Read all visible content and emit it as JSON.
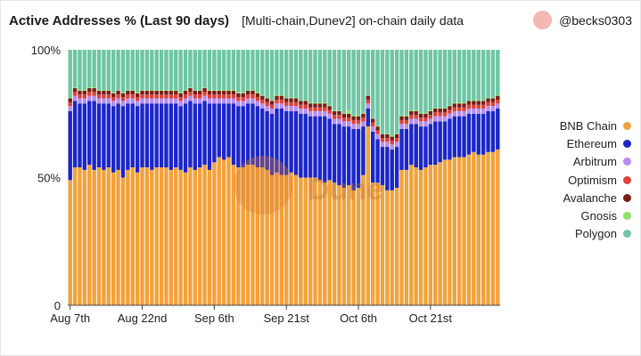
{
  "header": {
    "title": "Active Addresses % (Last 90 days)",
    "subtitle": "[Multi-chain,Dunev2] on-chain daily data",
    "author": "@becks0303"
  },
  "watermark": {
    "text": "Dune"
  },
  "chart_data": {
    "type": "bar",
    "stacked": true,
    "title": "Active Addresses % (Last 90 days)",
    "subtitle": "[Multi-chain,Dunev2] on-chain daily data",
    "y_ticks": [
      "0",
      "50%",
      "100%"
    ],
    "ylim": [
      0,
      100
    ],
    "x_tick_labels": [
      "Aug 7th",
      "Aug 22nd",
      "Sep 6th",
      "Sep 21st",
      "Oct 6th",
      "Oct 21st"
    ],
    "x_tick_index": [
      0,
      15,
      30,
      45,
      60,
      75
    ],
    "grid": false,
    "legend_position": "right",
    "categories": [
      "Aug 7",
      "Aug 8",
      "Aug 9",
      "Aug 10",
      "Aug 11",
      "Aug 12",
      "Aug 13",
      "Aug 14",
      "Aug 15",
      "Aug 16",
      "Aug 17",
      "Aug 18",
      "Aug 19",
      "Aug 20",
      "Aug 21",
      "Aug 22",
      "Aug 23",
      "Aug 24",
      "Aug 25",
      "Aug 26",
      "Aug 27",
      "Aug 28",
      "Aug 29",
      "Aug 30",
      "Aug 31",
      "Sep 1",
      "Sep 2",
      "Sep 3",
      "Sep 4",
      "Sep 5",
      "Sep 6",
      "Sep 7",
      "Sep 8",
      "Sep 9",
      "Sep 10",
      "Sep 11",
      "Sep 12",
      "Sep 13",
      "Sep 14",
      "Sep 15",
      "Sep 16",
      "Sep 17",
      "Sep 18",
      "Sep 19",
      "Sep 20",
      "Sep 21",
      "Sep 22",
      "Sep 23",
      "Sep 24",
      "Sep 25",
      "Sep 26",
      "Sep 27",
      "Sep 28",
      "Sep 29",
      "Sep 30",
      "Oct 1",
      "Oct 2",
      "Oct 3",
      "Oct 4",
      "Oct 5",
      "Oct 6",
      "Oct 7",
      "Oct 8",
      "Oct 9",
      "Oct 10",
      "Oct 11",
      "Oct 12",
      "Oct 13",
      "Oct 14",
      "Oct 15",
      "Oct 16",
      "Oct 17",
      "Oct 18",
      "Oct 19",
      "Oct 20",
      "Oct 21",
      "Oct 22",
      "Oct 23",
      "Oct 24",
      "Oct 25",
      "Oct 26",
      "Oct 27",
      "Oct 28",
      "Oct 29",
      "Oct 30",
      "Oct 31",
      "Nov 1",
      "Nov 2",
      "Nov 3",
      "Nov 4"
    ],
    "series": [
      {
        "name": "BNB Chain",
        "color": "#f2a23a",
        "values": [
          49,
          54,
          54,
          53,
          55,
          53,
          54,
          53,
          54,
          52,
          53,
          50,
          53,
          54,
          52,
          54,
          54,
          53,
          54,
          54,
          54,
          53,
          54,
          53,
          52,
          54,
          53,
          54,
          55,
          53,
          56,
          58,
          57,
          58,
          55,
          54,
          54,
          55,
          55,
          54,
          54,
          53,
          51,
          52,
          51,
          51,
          52,
          51,
          50,
          50,
          50,
          50,
          49,
          48,
          49,
          48,
          47,
          46,
          47,
          45,
          46,
          51,
          70,
          48,
          48,
          47,
          45,
          45,
          46,
          53,
          53,
          55,
          54,
          53,
          54,
          55,
          55,
          56,
          57,
          57,
          58,
          58,
          58,
          59,
          60,
          59,
          59,
          60,
          60,
          61
        ]
      },
      {
        "name": "Ethereum",
        "color": "#1a26c8",
        "values": [
          27,
          26,
          25,
          26,
          25,
          27,
          25,
          26,
          25,
          26,
          26,
          28,
          26,
          25,
          26,
          25,
          25,
          26,
          25,
          25,
          25,
          26,
          25,
          25,
          27,
          26,
          26,
          25,
          25,
          26,
          23,
          21,
          22,
          21,
          24,
          24,
          24,
          24,
          24,
          24,
          23,
          23,
          24,
          25,
          26,
          25,
          24,
          25,
          25,
          25,
          24,
          24,
          25,
          26,
          24,
          23,
          24,
          24,
          23,
          24,
          23,
          19,
          7,
          20,
          17,
          15,
          17,
          16,
          16,
          16,
          16,
          16,
          17,
          17,
          16,
          16,
          17,
          16,
          15,
          16,
          16,
          16,
          16,
          16,
          15,
          16,
          16,
          16,
          16,
          16
        ]
      },
      {
        "name": "Arbitrum",
        "color": "#b58ef0",
        "values": [
          2,
          2,
          2,
          2,
          2,
          2,
          2,
          2,
          2,
          2,
          2,
          2,
          2,
          2,
          2,
          2,
          2,
          2,
          2,
          2,
          2,
          2,
          2,
          2,
          2,
          2,
          2,
          2,
          2,
          2,
          2,
          2,
          2,
          2,
          2,
          2,
          2,
          2,
          2,
          2,
          2,
          2,
          2,
          2,
          2,
          2,
          2,
          2,
          2,
          2,
          2,
          2,
          2,
          2,
          2,
          2,
          2,
          2,
          2,
          2,
          2,
          2,
          2,
          2,
          2,
          2,
          2,
          2,
          2,
          2,
          2,
          2,
          2,
          2,
          2,
          2,
          2,
          2,
          2,
          2,
          2,
          2,
          2,
          2,
          2,
          2,
          2,
          2,
          2,
          2
        ]
      },
      {
        "name": "Optimism",
        "color": "#e0403a",
        "values": [
          1.5,
          1.5,
          1.5,
          1.5,
          1.5,
          1.5,
          1.5,
          1.5,
          1.5,
          1.5,
          1.5,
          1.5,
          1.5,
          1.5,
          1.5,
          1.5,
          1.5,
          1.5,
          1.5,
          1.5,
          1.5,
          1.5,
          1.5,
          1.5,
          1.5,
          1.5,
          1.5,
          1.5,
          1.5,
          1.5,
          1.5,
          1.5,
          1.5,
          1.5,
          1.5,
          1.5,
          1.5,
          1.5,
          1.5,
          1.5,
          1.5,
          1.5,
          1.5,
          1.5,
          1.5,
          1.5,
          1.5,
          1.5,
          1.5,
          1.5,
          1.5,
          1.5,
          1.5,
          1.5,
          1.5,
          1.5,
          1.5,
          1.5,
          1.5,
          1.5,
          1.5,
          1.5,
          1.5,
          1.5,
          1.5,
          1.5,
          1.5,
          1.5,
          1.5,
          1.5,
          1.5,
          1.5,
          1.5,
          1.5,
          1.5,
          1.5,
          1.5,
          1.5,
          1.5,
          1.5,
          1.5,
          1.5,
          1.5,
          1.5,
          1.5,
          1.5,
          1.5,
          1.5,
          1.5,
          1.5
        ]
      },
      {
        "name": "Avalanche",
        "color": "#7a1d16",
        "values": [
          1.5,
          1.5,
          1.5,
          1.5,
          1.5,
          1.5,
          1.5,
          1.5,
          1.5,
          1.5,
          1.5,
          1.5,
          1.5,
          1.5,
          1.5,
          1.5,
          1.5,
          1.5,
          1.5,
          1.5,
          1.5,
          1.5,
          1.5,
          1.5,
          1.5,
          1.5,
          1.5,
          1.5,
          1.5,
          1.5,
          1.5,
          1.5,
          1.5,
          1.5,
          1.5,
          1.5,
          1.5,
          1.5,
          1.5,
          1.5,
          1.5,
          1.5,
          1.5,
          1.5,
          1.5,
          1.5,
          1.5,
          1.5,
          1.5,
          1.5,
          1.5,
          1.5,
          1.5,
          1.5,
          1.5,
          1.5,
          1.5,
          1.5,
          1.5,
          1.5,
          1.5,
          1.5,
          1.5,
          1.5,
          1.5,
          1.5,
          1.5,
          1.5,
          1.5,
          1.5,
          1.5,
          1.5,
          1.5,
          1.5,
          1.5,
          1.5,
          1.5,
          1.5,
          1.5,
          1.5,
          1.5,
          1.5,
          1.5,
          1.5,
          1.5,
          1.5,
          1.5,
          1.5,
          1.5,
          1.5
        ]
      },
      {
        "name": "Gnosis",
        "color": "#8de36a",
        "values": [
          0.3,
          0.3,
          0.3,
          0.3,
          0.3,
          0.3,
          0.3,
          0.3,
          0.3,
          0.3,
          0.3,
          0.3,
          0.3,
          0.3,
          0.3,
          0.3,
          0.3,
          0.3,
          0.3,
          0.3,
          0.3,
          0.3,
          0.3,
          0.3,
          0.3,
          0.3,
          0.3,
          0.3,
          0.3,
          0.3,
          0.3,
          0.3,
          0.3,
          0.3,
          0.3,
          0.3,
          0.3,
          0.3,
          0.3,
          0.3,
          0.3,
          0.3,
          0.3,
          0.3,
          0.3,
          0.3,
          0.3,
          0.3,
          0.3,
          0.3,
          0.3,
          0.3,
          0.3,
          0.3,
          0.3,
          0.3,
          0.3,
          0.3,
          1.5,
          0.3,
          0.3,
          0.3,
          0.3,
          0.3,
          0.3,
          0.3,
          0.3,
          0.3,
          0.3,
          0.3,
          0.3,
          0.3,
          0.3,
          0.3,
          0.3,
          0.3,
          0.3,
          0.3,
          0.3,
          0.3,
          0.3,
          0.3,
          0.3,
          0.3,
          0.3,
          0.3,
          0.3,
          0.3,
          0.3,
          0.3
        ]
      },
      {
        "name": "Polygon",
        "color": "#6ec6a3",
        "values": "remainder"
      }
    ]
  }
}
